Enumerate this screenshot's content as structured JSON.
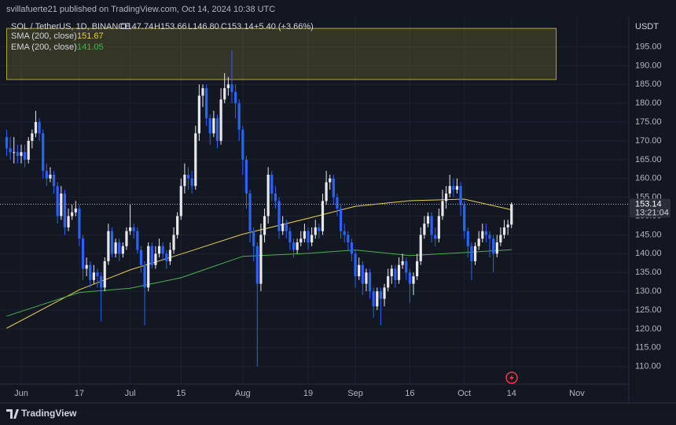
{
  "header": {
    "publisher": "svillafuerte21 published on TradingView.com, Oct 14, 2024 10:38 UTC"
  },
  "footer": {
    "brand": "TradingView"
  },
  "chart_data": {
    "type": "candlestick",
    "legend": {
      "symbol": "SOL / TetherUS, 1D, BINANCE",
      "open": "O147.74",
      "high": "H153.66",
      "low": "L146.80",
      "close": "C153.14",
      "change": "+5.40 (+3.66%)"
    },
    "currency": "USDT",
    "countdown": "13:21:04",
    "up_color": "#e8e8ea",
    "down_color": "#2962ff",
    "grid": true,
    "ylim": [
      105.34,
      202.84
    ],
    "xlim": [
      -0.54,
      171.3
    ],
    "yticks": [
      {
        "value": 110,
        "label": "110.00"
      },
      {
        "value": 115,
        "label": "115.00"
      },
      {
        "value": 120,
        "label": "120.00"
      },
      {
        "value": 125,
        "label": "125.00"
      },
      {
        "value": 130,
        "label": "130.00"
      },
      {
        "value": 135,
        "label": "135.00"
      },
      {
        "value": 140,
        "label": "140.00"
      },
      {
        "value": 145,
        "label": "145.00"
      },
      {
        "value": 150,
        "label": "150.00"
      },
      {
        "value": 155,
        "label": "155.00"
      },
      {
        "value": 160,
        "label": "160.00"
      },
      {
        "value": 165,
        "label": "165.00"
      },
      {
        "value": 170,
        "label": "170.00"
      },
      {
        "value": 175,
        "label": "175.00"
      },
      {
        "value": 180,
        "label": "180.00"
      },
      {
        "value": 185,
        "label": "185.00"
      },
      {
        "value": 190,
        "label": "190.00"
      },
      {
        "value": 195,
        "label": "195.00"
      }
    ],
    "xticks": [
      {
        "value": 4,
        "label": "Jun"
      },
      {
        "value": 20,
        "label": "17"
      },
      {
        "value": 34,
        "label": "Jul"
      },
      {
        "value": 48,
        "label": "15"
      },
      {
        "value": 65,
        "label": "Aug"
      },
      {
        "value": 83,
        "label": "19"
      },
      {
        "value": 96,
        "label": "Sep"
      },
      {
        "value": 111,
        "label": "16"
      },
      {
        "value": 126,
        "label": "Oct"
      },
      {
        "value": 139,
        "label": "14"
      },
      {
        "value": 157,
        "label": "Nov"
      }
    ],
    "zone": {
      "low": 186.3,
      "high": 199.9,
      "start": 0,
      "end": 151.3,
      "color": "#d4c43a"
    },
    "lines": [
      {
        "name": "SMA (200, close)",
        "color": "#e8cf4a",
        "x": [
          0,
          20,
          34,
          48,
          65,
          83,
          96,
          111,
          126,
          139
        ],
        "values": [
          120.2,
          130.4,
          135.7,
          139.9,
          145.2,
          149.4,
          152.6,
          154.1,
          154.5,
          151.67
        ]
      },
      {
        "name": "EMA (200, close)",
        "color": "#4caf50",
        "x": [
          0,
          20,
          34,
          48,
          65,
          83,
          96,
          111,
          126,
          139
        ],
        "values": [
          123.4,
          129.7,
          130.8,
          133.6,
          139.3,
          140.1,
          141.0,
          139.5,
          140.3,
          141.05
        ]
      }
    ],
    "candles": [
      [
        171,
        173,
        166,
        168
      ],
      [
        168,
        171,
        165,
        167
      ],
      [
        167,
        171,
        164,
        167
      ],
      [
        167,
        169,
        164,
        166
      ],
      [
        166,
        169,
        164,
        167
      ],
      [
        167,
        169,
        163,
        165
      ],
      [
        165,
        171,
        164,
        170
      ],
      [
        170,
        173,
        168,
        172
      ],
      [
        172,
        178,
        171,
        175
      ],
      [
        175,
        176,
        170,
        172
      ],
      [
        172,
        173,
        160,
        162
      ],
      [
        162,
        164,
        158,
        160
      ],
      [
        160,
        163,
        159,
        161
      ],
      [
        161,
        162,
        156,
        158
      ],
      [
        158,
        159,
        148,
        150
      ],
      [
        150,
        158,
        149,
        156
      ],
      [
        156,
        157,
        145,
        147
      ],
      [
        147,
        152,
        146,
        150
      ],
      [
        150,
        153,
        149,
        151
      ],
      [
        151,
        154,
        150,
        152
      ],
      [
        152,
        153,
        142,
        144
      ],
      [
        144,
        145,
        133,
        136
      ],
      [
        136,
        139,
        134,
        137
      ],
      [
        137,
        138,
        131,
        133
      ],
      [
        133,
        137,
        132,
        135
      ],
      [
        135,
        136,
        131,
        134
      ],
      [
        134,
        135,
        122,
        131
      ],
      [
        131,
        139,
        130,
        138
      ],
      [
        138,
        148,
        137,
        146
      ],
      [
        146,
        147,
        139,
        140
      ],
      [
        140,
        144,
        139,
        143
      ],
      [
        143,
        144,
        138,
        140
      ],
      [
        140,
        143,
        139,
        142
      ],
      [
        142,
        147,
        141,
        146
      ],
      [
        146,
        153,
        145,
        147
      ],
      [
        147,
        148,
        144,
        146
      ],
      [
        146,
        147,
        140,
        141
      ],
      [
        141,
        142,
        135,
        137
      ],
      [
        137,
        138,
        121,
        131
      ],
      [
        131,
        143,
        130,
        142
      ],
      [
        142,
        143,
        136,
        137
      ],
      [
        137,
        142,
        136,
        140
      ],
      [
        140,
        144,
        139,
        142
      ],
      [
        142,
        143,
        138,
        140
      ],
      [
        140,
        141,
        136,
        138
      ],
      [
        138,
        143,
        137,
        141
      ],
      [
        141,
        147,
        140,
        145
      ],
      [
        145,
        151,
        144,
        150
      ],
      [
        150,
        160,
        149,
        158
      ],
      [
        158,
        164,
        156,
        161
      ],
      [
        161,
        163,
        157,
        160
      ],
      [
        160,
        162,
        156,
        158
      ],
      [
        158,
        174,
        157,
        172
      ],
      [
        172,
        185,
        170,
        182
      ],
      [
        182,
        185,
        179,
        184
      ],
      [
        184,
        185,
        174,
        176
      ],
      [
        176,
        177,
        169,
        172
      ],
      [
        172,
        178,
        171,
        176
      ],
      [
        176,
        177,
        168,
        170
      ],
      [
        170,
        184,
        169,
        181
      ],
      [
        181,
        188,
        180,
        184
      ],
      [
        184,
        187,
        182,
        185
      ],
      [
        185,
        194,
        180,
        183
      ],
      [
        183,
        185,
        176,
        180
      ],
      [
        180,
        181,
        170,
        173
      ],
      [
        173,
        174,
        161,
        165
      ],
      [
        165,
        166,
        152,
        156
      ],
      [
        156,
        157,
        143,
        146
      ],
      [
        146,
        147,
        138,
        142
      ],
      [
        142,
        143,
        110,
        132
      ],
      [
        132,
        148,
        130,
        145
      ],
      [
        145,
        152,
        143,
        150
      ],
      [
        150,
        163,
        148,
        161
      ],
      [
        161,
        162,
        154,
        156
      ],
      [
        156,
        158,
        152,
        154
      ],
      [
        154,
        155,
        144,
        146
      ],
      [
        146,
        150,
        145,
        148
      ],
      [
        148,
        149,
        144,
        146
      ],
      [
        146,
        147,
        141,
        143
      ],
      [
        143,
        144,
        139,
        141
      ],
      [
        141,
        144,
        140,
        143
      ],
      [
        143,
        146,
        142,
        144
      ],
      [
        144,
        148,
        143,
        146
      ],
      [
        146,
        147,
        141,
        143
      ],
      [
        143,
        147,
        142,
        145
      ],
      [
        145,
        149,
        144,
        147
      ],
      [
        147,
        148,
        144,
        146
      ],
      [
        146,
        156,
        145,
        154
      ],
      [
        154,
        162,
        153,
        159
      ],
      [
        159,
        161,
        157,
        160
      ],
      [
        160,
        161,
        153,
        155
      ],
      [
        155,
        156,
        150,
        152
      ],
      [
        152,
        153,
        144,
        146
      ],
      [
        146,
        148,
        143,
        145
      ],
      [
        145,
        146,
        141,
        143
      ],
      [
        143,
        144,
        138,
        140
      ],
      [
        140,
        141,
        131,
        134
      ],
      [
        134,
        139,
        133,
        137
      ],
      [
        137,
        138,
        129,
        132
      ],
      [
        132,
        136,
        130,
        135
      ],
      [
        135,
        136,
        128,
        130
      ],
      [
        130,
        131,
        123,
        126
      ],
      [
        126,
        131,
        125,
        130
      ],
      [
        130,
        131,
        121,
        128
      ],
      [
        128,
        132,
        126,
        131
      ],
      [
        131,
        136,
        130,
        134
      ],
      [
        134,
        137,
        132,
        136
      ],
      [
        136,
        137,
        131,
        133
      ],
      [
        133,
        139,
        132,
        137
      ],
      [
        137,
        140,
        136,
        138
      ],
      [
        138,
        139,
        133,
        135
      ],
      [
        135,
        136,
        127,
        132
      ],
      [
        132,
        135,
        129,
        134
      ],
      [
        134,
        140,
        133,
        138
      ],
      [
        138,
        147,
        137,
        145
      ],
      [
        145,
        150,
        144,
        148
      ],
      [
        148,
        151,
        147,
        150
      ],
      [
        150,
        151,
        143,
        145
      ],
      [
        145,
        147,
        142,
        144
      ],
      [
        144,
        152,
        143,
        150
      ],
      [
        150,
        157,
        149,
        154
      ],
      [
        154,
        158,
        152,
        156
      ],
      [
        156,
        161,
        155,
        158
      ],
      [
        158,
        160,
        155,
        157
      ],
      [
        157,
        160,
        156,
        158
      ],
      [
        158,
        159,
        150,
        153
      ],
      [
        153,
        154,
        144,
        146
      ],
      [
        146,
        147,
        139,
        142
      ],
      [
        142,
        143,
        133,
        138
      ],
      [
        138,
        143,
        137,
        142
      ],
      [
        142,
        146,
        141,
        144
      ],
      [
        144,
        148,
        143,
        146
      ],
      [
        146,
        148,
        143,
        145
      ],
      [
        145,
        146,
        139,
        144
      ],
      [
        144,
        145,
        135,
        140
      ],
      [
        140,
        145,
        139,
        143
      ],
      [
        143,
        147,
        142,
        145
      ],
      [
        145,
        149,
        144,
        147
      ],
      [
        147,
        149,
        145,
        147.74
      ],
      [
        147.74,
        153.66,
        146.8,
        153.14
      ]
    ]
  }
}
